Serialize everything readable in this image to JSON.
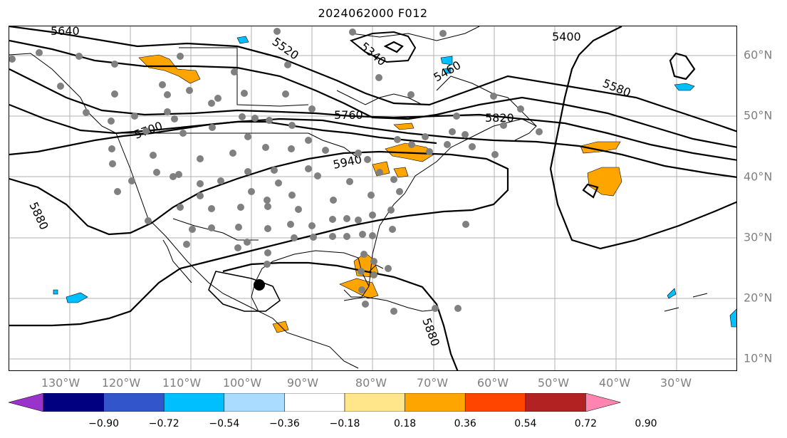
{
  "title": "2024062000 F012",
  "lon_labels": [
    "130°W",
    "120°W",
    "110°W",
    "100°W",
    "90°W",
    "80°W",
    "70°W",
    "60°W",
    "50°W",
    "40°W",
    "30°W"
  ],
  "lat_labels": [
    "60°N",
    "50°N",
    "40°N",
    "30°N",
    "20°N",
    "10°N"
  ],
  "contour_labels": [
    "5640",
    "5520",
    "5400",
    "5580",
    "5460",
    "5340",
    "5760",
    "5820",
    "5700",
    "5880",
    "5940",
    "5880",
    "5880"
  ],
  "colorbar": {
    "tick_labels": [
      "−0.90",
      "−0.72",
      "−0.54",
      "−0.36",
      "−0.18",
      "0.18",
      "0.36",
      "0.54",
      "0.72",
      "0.90"
    ],
    "colors": [
      "#9933cc",
      "#000080",
      "#3355cc",
      "#00bfff",
      "#aadcff",
      "#ffffff",
      "#ffe68a",
      "#ffa500",
      "#ff4500",
      "#b22222",
      "#ff85b0"
    ]
  }
}
